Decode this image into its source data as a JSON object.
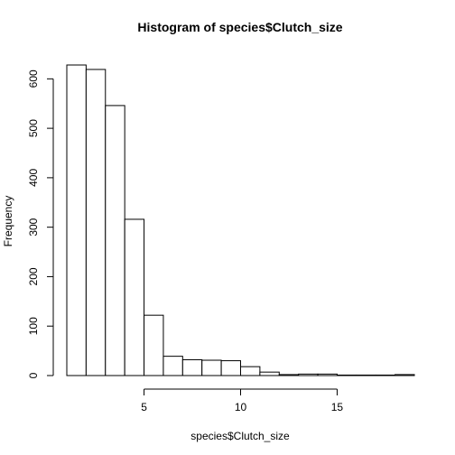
{
  "chart_data": {
    "type": "bar",
    "title": "Histogram of species$Clutch_size",
    "xlabel": "species$Clutch_size",
    "ylabel": "Frequency",
    "bin_edges": [
      1,
      2,
      3,
      4,
      5,
      6,
      7,
      8,
      9,
      10,
      11,
      12,
      13,
      14,
      15,
      16,
      17,
      18,
      19
    ],
    "values": [
      628,
      619,
      546,
      316,
      122,
      39,
      32,
      31,
      30,
      18,
      7,
      2,
      3,
      3,
      1,
      1,
      1,
      2
    ],
    "xlim": [
      1,
      19
    ],
    "ylim": [
      0,
      628
    ],
    "x_ticks": [
      5,
      10,
      15
    ],
    "y_ticks": [
      0,
      100,
      200,
      300,
      400,
      500,
      600
    ],
    "grid": false,
    "legend": "none"
  }
}
